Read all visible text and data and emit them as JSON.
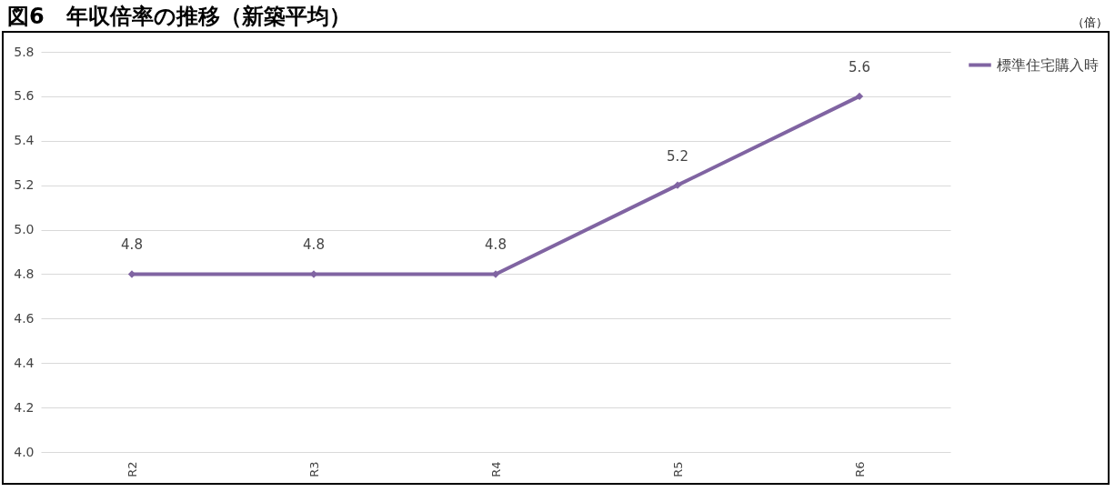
{
  "chart_data": {
    "type": "line",
    "title": "図6　年収倍率の推移（新築平均）",
    "annotations": [
      "（倍）"
    ],
    "categories": [
      "R2",
      "R3",
      "R4",
      "R5",
      "R6"
    ],
    "series": [
      {
        "name": "標準住宅購入時",
        "color": "#8064a2",
        "values": [
          4.8,
          4.8,
          4.8,
          5.2,
          5.6
        ]
      }
    ],
    "ylim": [
      4.0,
      5.8
    ],
    "yticks": [
      {
        "value": 4.0,
        "label": "4.0"
      },
      {
        "value": 4.2,
        "label": "4.2"
      },
      {
        "value": 4.4,
        "label": "4.4"
      },
      {
        "value": 4.6,
        "label": "4.6"
      },
      {
        "value": 4.8,
        "label": "4.8"
      },
      {
        "value": 5.0,
        "label": "5.0"
      },
      {
        "value": 5.2,
        "label": "5.2"
      },
      {
        "value": 5.4,
        "label": "5.4"
      },
      {
        "value": 5.6,
        "label": "5.6"
      },
      {
        "value": 5.8,
        "label": "5.8"
      }
    ],
    "grid": "y",
    "legend": "right",
    "marker": "diamond",
    "line_style": "solid",
    "data_labels": true
  }
}
